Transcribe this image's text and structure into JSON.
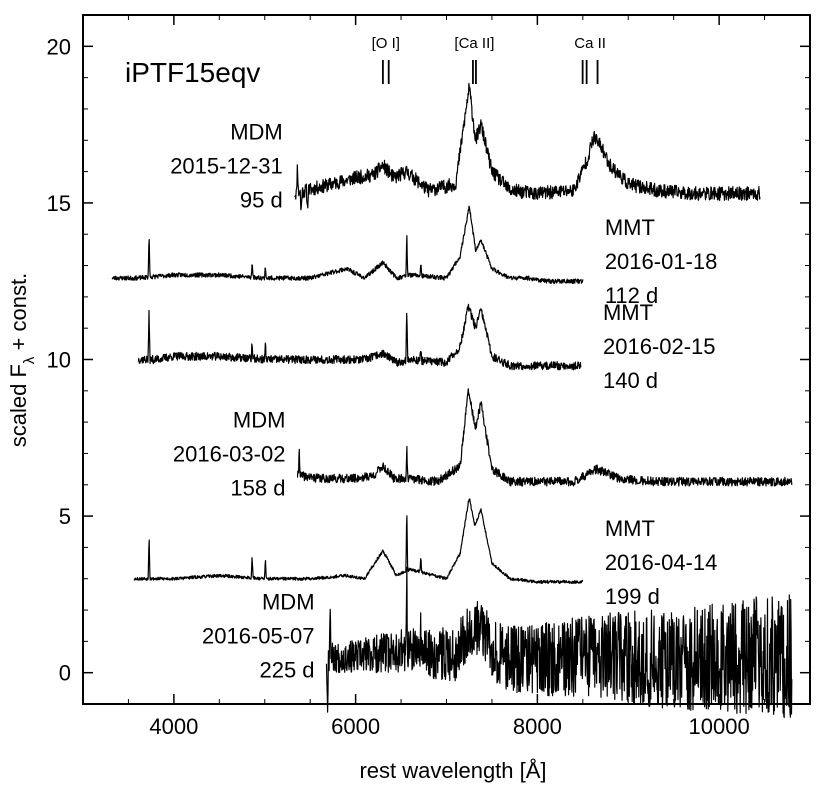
{
  "chart_data": {
    "type": "line",
    "title": "iPTF15eqv",
    "xlabel": "rest wavelength [Å]",
    "ylabel_main": "scaled F",
    "ylabel_sub": "λ",
    "ylabel_tail": " + const.",
    "xlim": [
      3000,
      11000
    ],
    "ylim": [
      -1,
      21
    ],
    "xticks": [
      4000,
      6000,
      8000,
      10000
    ],
    "xtick_labels": [
      "4000",
      "6000",
      "8000",
      "10000"
    ],
    "yticks": [
      0,
      5,
      10,
      15,
      20
    ],
    "ytick_labels": [
      "0",
      "5",
      "10",
      "15",
      "20"
    ],
    "line_markers": [
      {
        "label": "[O I]",
        "wavelengths": [
          6300,
          6364
        ]
      },
      {
        "label": "[Ca II]",
        "wavelengths": [
          7291,
          7324
        ]
      },
      {
        "label": "Ca II",
        "wavelengths": [
          8498,
          8542,
          8662
        ]
      }
    ],
    "series": [
      {
        "name": "MDM 2015-12-31 95 d",
        "telescope": "MDM",
        "date": "2015-12-31",
        "phase": "95 d",
        "label_side": "left",
        "x_range": [
          5330,
          10450
        ],
        "noise": 0.22,
        "baseline": 15.3,
        "trend": 0.0,
        "seed": 11,
        "spikes": [
          [
            5360,
            1.0
          ],
          [
            5400,
            -0.7
          ],
          [
            5470,
            -0.6
          ]
        ],
        "x": [
          5330,
          5600,
          6000,
          6200,
          6300,
          6420,
          6560,
          6800,
          7100,
          7250,
          7320,
          7380,
          7500,
          7700,
          8000,
          8400,
          8550,
          8620,
          8700,
          8800,
          9000,
          9300,
          9700,
          10100,
          10450
        ],
        "values": [
          15.3,
          15.5,
          15.8,
          15.9,
          16.2,
          15.8,
          16.0,
          15.4,
          15.6,
          18.7,
          17.0,
          17.5,
          16.0,
          15.4,
          15.3,
          15.4,
          16.4,
          17.1,
          16.8,
          16.2,
          15.6,
          15.4,
          15.3,
          15.3,
          15.3
        ]
      },
      {
        "name": "MMT 2016-01-18 112 d",
        "telescope": "MMT",
        "date": "2016-01-18",
        "phase": "112 d",
        "label_side": "right",
        "x_range": [
          3320,
          8500
        ],
        "noise": 0.07,
        "baseline": 12.5,
        "trend": 0.0,
        "seed": 23,
        "spikes": [
          [
            3727,
            1.4
          ],
          [
            4861,
            0.5
          ],
          [
            5007,
            0.4
          ],
          [
            6563,
            1.4
          ],
          [
            6717,
            0.4
          ]
        ],
        "x": [
          3320,
          3600,
          4000,
          4500,
          5000,
          5500,
          5900,
          6100,
          6300,
          6450,
          6600,
          7000,
          7150,
          7250,
          7320,
          7380,
          7500,
          7700,
          7900,
          8100,
          8500
        ],
        "values": [
          12.6,
          12.6,
          12.7,
          12.7,
          12.6,
          12.6,
          12.9,
          12.6,
          13.1,
          12.6,
          12.7,
          12.6,
          13.3,
          14.9,
          13.5,
          13.8,
          12.9,
          12.6,
          12.6,
          12.5,
          12.5
        ]
      },
      {
        "name": "MMT 2016-02-15 140 d",
        "telescope": "MMT",
        "date": "2016-02-15",
        "phase": "140 d",
        "label_side": "right",
        "x_range": [
          3610,
          8480
        ],
        "noise": 0.13,
        "baseline": 9.8,
        "trend": 0.0,
        "seed": 37,
        "spikes": [
          [
            3727,
            1.6
          ],
          [
            4861,
            0.5
          ],
          [
            5007,
            0.5
          ],
          [
            6563,
            1.7
          ],
          [
            6717,
            0.3
          ]
        ],
        "x": [
          3610,
          3800,
          4000,
          4500,
          5000,
          5500,
          5900,
          6100,
          6300,
          6450,
          6600,
          7000,
          7150,
          7240,
          7320,
          7380,
          7500,
          7700,
          8100,
          8480
        ],
        "values": [
          10.0,
          10.0,
          10.1,
          10.1,
          10.0,
          10.0,
          10.0,
          10.0,
          10.2,
          9.9,
          10.0,
          9.9,
          10.4,
          11.7,
          11.0,
          11.6,
          10.1,
          9.8,
          9.8,
          9.8
        ]
      },
      {
        "name": "MDM 2016-03-02 158 d",
        "telescope": "MDM",
        "date": "2016-03-02",
        "phase": "158 d",
        "label_side": "left",
        "x_range": [
          5360,
          10800
        ],
        "noise": 0.14,
        "baseline": 6.1,
        "trend": 0.0,
        "seed": 41,
        "spikes": [
          [
            5380,
            0.9
          ],
          [
            6563,
            1.0
          ]
        ],
        "x": [
          5360,
          5600,
          6000,
          6200,
          6300,
          6420,
          6600,
          6900,
          7150,
          7240,
          7320,
          7380,
          7500,
          7700,
          8000,
          8400,
          8650,
          8900,
          9300,
          9800,
          10300,
          10800
        ],
        "values": [
          6.3,
          6.2,
          6.2,
          6.3,
          6.6,
          6.2,
          6.2,
          6.1,
          6.6,
          9.0,
          7.8,
          8.6,
          6.5,
          6.1,
          6.1,
          6.1,
          6.5,
          6.2,
          6.1,
          6.1,
          6.1,
          6.1
        ]
      },
      {
        "name": "MMT 2016-04-14 199 d",
        "telescope": "MMT",
        "date": "2016-04-14",
        "phase": "199 d",
        "label_side": "right",
        "x_range": [
          3560,
          8500
        ],
        "noise": 0.05,
        "baseline": 2.9,
        "trend": 0.0,
        "seed": 53,
        "spikes": [
          [
            3727,
            1.4
          ],
          [
            4861,
            0.7
          ],
          [
            5007,
            0.6
          ],
          [
            6563,
            2.0
          ],
          [
            6717,
            0.5
          ]
        ],
        "x": [
          3560,
          4000,
          4500,
          5000,
          5500,
          5900,
          6100,
          6300,
          6450,
          6600,
          7000,
          7150,
          7250,
          7310,
          7380,
          7500,
          7700,
          8000,
          8200,
          8500
        ],
        "values": [
          3.0,
          3.0,
          3.1,
          3.0,
          3.0,
          3.1,
          3.0,
          3.9,
          3.1,
          3.3,
          3.0,
          3.8,
          5.6,
          4.7,
          5.2,
          3.5,
          3.0,
          2.9,
          2.9,
          2.9
        ]
      },
      {
        "name": "MDM 2016-05-07 225 d",
        "telescope": "MDM",
        "date": "2016-05-07",
        "phase": "225 d",
        "label_side": "left",
        "x_range": [
          5680,
          10800
        ],
        "noise": 0.45,
        "baseline": 0.3,
        "trend": 1.0,
        "seed": 67,
        "spikes": [
          [
            5690,
            -1.8
          ],
          [
            5720,
            1.8
          ],
          [
            6563,
            2.4
          ],
          [
            6717,
            1.0
          ]
        ],
        "x": [
          5680,
          6000,
          6500,
          6800,
          7100,
          7200,
          7300,
          7400,
          7600,
          8000,
          8500,
          9000,
          9500,
          10000,
          10500,
          10800
        ],
        "values": [
          0.5,
          0.5,
          0.7,
          0.6,
          0.6,
          1.2,
          1.5,
          1.3,
          0.5,
          0.4,
          0.5,
          0.5,
          0.4,
          0.5,
          0.6,
          0.5
        ]
      }
    ]
  }
}
